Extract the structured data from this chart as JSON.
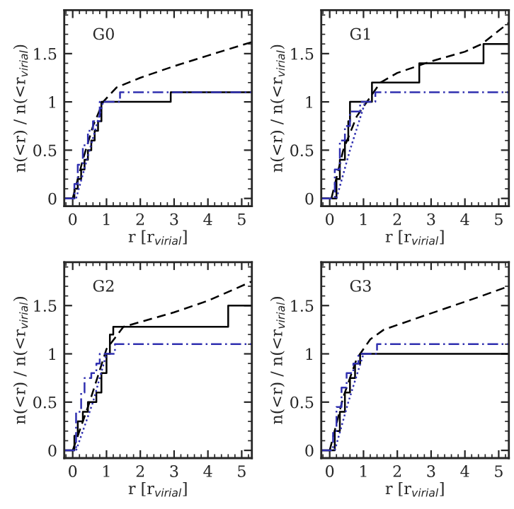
{
  "chart_data": [
    {
      "type": "line",
      "title": "G0",
      "xlabel": "r [r$_{virial}$]",
      "ylabel": "n(<r) / n(<r$_{virial}$)",
      "xlim": [
        -0.25,
        5.3
      ],
      "ylim": [
        -0.08,
        1.95
      ],
      "xticks": [
        0,
        1,
        2,
        3,
        4,
        5
      ],
      "yticks": [
        0,
        0.5,
        1,
        1.5
      ],
      "grid": false,
      "legend": false,
      "series": [
        {
          "type": "step",
          "color": "#000000",
          "line_style": "solid",
          "x": [
            -0.25,
            0.05,
            0.15,
            0.25,
            0.35,
            0.45,
            0.55,
            0.65,
            0.75,
            0.85,
            2.9,
            5.3
          ],
          "values": [
            0,
            0.1,
            0.2,
            0.3,
            0.4,
            0.5,
            0.6,
            0.7,
            0.8,
            1.0,
            1.1,
            1.1
          ]
        },
        {
          "type": "line",
          "color": "#000000",
          "line_style": "dashed",
          "x": [
            0,
            0.3,
            0.6,
            0.9,
            1.3,
            2,
            3,
            4,
            5.3
          ],
          "values": [
            0,
            0.4,
            0.75,
            1.0,
            1.15,
            1.25,
            1.37,
            1.48,
            1.62
          ]
        },
        {
          "type": "step",
          "color": "#3030b0",
          "line_style": "dashdot",
          "x": [
            -0.25,
            0.05,
            0.15,
            0.3,
            0.45,
            0.6,
            0.8,
            1.4,
            5.3
          ],
          "values": [
            0,
            0.15,
            0.35,
            0.55,
            0.7,
            0.8,
            1.0,
            1.1,
            1.1
          ]
        },
        {
          "type": "line",
          "color": "#3030b0",
          "line_style": "dotted",
          "x": [
            0.1,
            0.5,
            0.9
          ],
          "values": [
            0,
            0.5,
            1.0
          ]
        }
      ]
    },
    {
      "type": "line",
      "title": "G1",
      "xlabel": "r [r$_{virial}$]",
      "ylabel": "n(<r) / n(<r$_{virial}$)",
      "xlim": [
        -0.25,
        5.3
      ],
      "ylim": [
        -0.08,
        1.95
      ],
      "xticks": [
        0,
        1,
        2,
        3,
        4,
        5
      ],
      "yticks": [
        0,
        0.5,
        1,
        1.5
      ],
      "grid": false,
      "legend": false,
      "series": [
        {
          "type": "step",
          "color": "#000000",
          "line_style": "solid",
          "x": [
            -0.25,
            0.2,
            0.3,
            0.45,
            0.55,
            0.6,
            1.25,
            2.65,
            4.55,
            5.3
          ],
          "values": [
            0,
            0.2,
            0.4,
            0.6,
            0.8,
            1.0,
            1.2,
            1.4,
            1.6,
            1.6
          ]
        },
        {
          "type": "line",
          "color": "#000000",
          "line_style": "dashed",
          "x": [
            0.05,
            0.4,
            0.8,
            1.2,
            1.5,
            2,
            3,
            4,
            4.5,
            5.3
          ],
          "values": [
            0,
            0.5,
            0.85,
            1.05,
            1.2,
            1.3,
            1.42,
            1.52,
            1.6,
            1.82
          ]
        },
        {
          "type": "step",
          "color": "#3030b0",
          "line_style": "dashdot",
          "x": [
            -0.25,
            0.15,
            0.3,
            0.45,
            0.6,
            0.9,
            1.35,
            5.3
          ],
          "values": [
            0,
            0.3,
            0.6,
            0.75,
            0.9,
            1.0,
            1.1,
            1.1
          ]
        },
        {
          "type": "line",
          "color": "#3030b0",
          "line_style": "dotted",
          "x": [
            0.2,
            0.6,
            1.05
          ],
          "values": [
            0,
            0.5,
            1.0
          ]
        }
      ]
    },
    {
      "type": "line",
      "title": "G2",
      "xlabel": "r [r$_{virial}$]",
      "ylabel": "n(<r) / n(<r$_{virial}$)",
      "xlim": [
        -0.25,
        5.3
      ],
      "ylim": [
        -0.08,
        1.95
      ],
      "xticks": [
        0,
        1,
        2,
        3,
        4,
        5
      ],
      "yticks": [
        0,
        0.5,
        1,
        1.5
      ],
      "grid": false,
      "legend": false,
      "series": [
        {
          "type": "step",
          "color": "#000000",
          "line_style": "solid",
          "x": [
            -0.25,
            0.05,
            0.15,
            0.3,
            0.45,
            0.7,
            0.85,
            1.0,
            1.1,
            1.2,
            4.6,
            5.3
          ],
          "values": [
            0,
            0.15,
            0.3,
            0.4,
            0.5,
            0.6,
            0.8,
            1.0,
            1.2,
            1.28,
            1.5,
            1.5
          ]
        },
        {
          "type": "line",
          "color": "#000000",
          "line_style": "dashed",
          "x": [
            0,
            0.5,
            1.0,
            1.5,
            2,
            3,
            4,
            5.3
          ],
          "values": [
            0,
            0.5,
            1.05,
            1.28,
            1.33,
            1.43,
            1.55,
            1.75
          ]
        },
        {
          "type": "step",
          "color": "#3030b0",
          "line_style": "dashdot",
          "x": [
            -0.25,
            0.1,
            0.25,
            0.35,
            0.55,
            0.7,
            0.8,
            1.25,
            5.3
          ],
          "values": [
            0,
            0.4,
            0.6,
            0.75,
            0.8,
            0.9,
            1.0,
            1.1,
            1.1
          ]
        },
        {
          "type": "line",
          "color": "#3030b0",
          "line_style": "dotted",
          "x": [
            0.1,
            0.6,
            1.0
          ],
          "values": [
            0,
            0.5,
            1.0
          ]
        }
      ]
    },
    {
      "type": "line",
      "title": "G3",
      "xlabel": "r [r$_{virial}$]",
      "ylabel": "n(<r) / n(<r$_{virial}$)",
      "xlim": [
        -0.25,
        5.3
      ],
      "ylim": [
        -0.08,
        1.95
      ],
      "xticks": [
        0,
        1,
        2,
        3,
        4,
        5
      ],
      "yticks": [
        0,
        0.5,
        1,
        1.5
      ],
      "grid": false,
      "legend": false,
      "series": [
        {
          "type": "step",
          "color": "#000000",
          "line_style": "solid",
          "x": [
            -0.25,
            0.15,
            0.3,
            0.45,
            0.6,
            0.75,
            0.9,
            5.3
          ],
          "values": [
            0,
            0.2,
            0.4,
            0.6,
            0.75,
            0.9,
            1.0,
            1.0
          ]
        },
        {
          "type": "line",
          "color": "#000000",
          "line_style": "dashed",
          "x": [
            0,
            0.4,
            0.8,
            1.2,
            1.6,
            2.5,
            3.5,
            4.5,
            5.3
          ],
          "values": [
            0,
            0.55,
            0.95,
            1.15,
            1.25,
            1.36,
            1.48,
            1.6,
            1.7
          ]
        },
        {
          "type": "step",
          "color": "#3030b0",
          "line_style": "dashdot",
          "x": [
            -0.25,
            0.1,
            0.2,
            0.35,
            0.5,
            0.7,
            0.85,
            1.4,
            5.3
          ],
          "values": [
            0,
            0.2,
            0.45,
            0.65,
            0.8,
            0.9,
            1.0,
            1.1,
            1.1
          ]
        },
        {
          "type": "line",
          "color": "#3030b0",
          "line_style": "dotted",
          "x": [
            0.15,
            0.55,
            1.0
          ],
          "values": [
            0,
            0.5,
            1.0
          ]
        }
      ]
    }
  ]
}
